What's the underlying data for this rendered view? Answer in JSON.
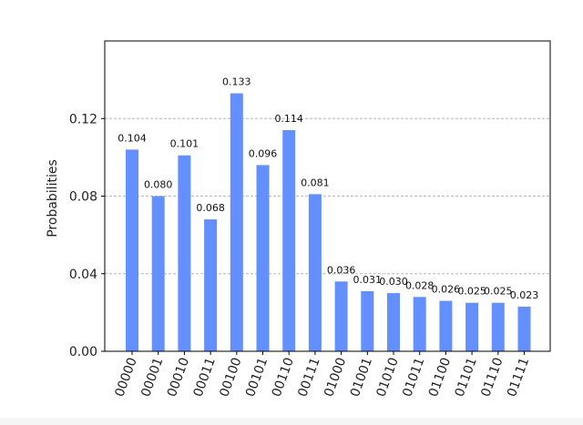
{
  "chart_data": {
    "type": "bar",
    "ylabel": "Probabilities",
    "categories": [
      "00000",
      "00001",
      "00010",
      "00011",
      "00100",
      "00101",
      "00110",
      "00111",
      "01000",
      "01001",
      "01010",
      "01011",
      "01100",
      "01101",
      "01110",
      "01111"
    ],
    "values": [
      0.104,
      0.08,
      0.101,
      0.068,
      0.133,
      0.096,
      0.114,
      0.081,
      0.036,
      0.031,
      0.03,
      0.028,
      0.026,
      0.025,
      0.025,
      0.023
    ],
    "value_labels": [
      "0.104",
      "0.080",
      "0.101",
      "0.068",
      "0.133",
      "0.096",
      "0.114",
      "0.081",
      "0.036",
      "0.031",
      "0.030",
      "0.028",
      "0.026",
      "0.025",
      "0.025",
      "0.023"
    ],
    "ylim": [
      0,
      0.16
    ],
    "yticks": [
      0.0,
      0.04,
      0.08,
      0.12
    ],
    "ytick_labels": [
      "0.00",
      "0.04",
      "0.08",
      "0.12"
    ],
    "grid": "horizontal dashed",
    "bar_color": "#648fff"
  }
}
